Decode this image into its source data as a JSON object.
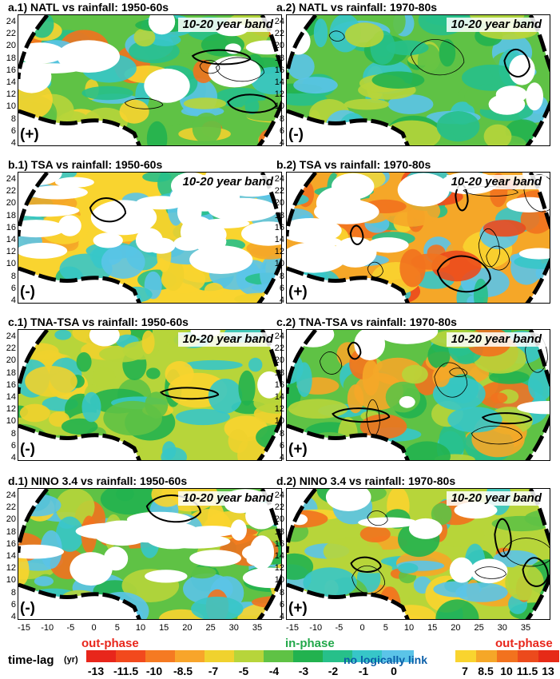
{
  "panels": [
    {
      "title": "a.1) NATL vs rainfall: 1950-60s",
      "band": "10-20 year band",
      "sign": "(+)"
    },
    {
      "title": "a.2) NATL vs rainfall: 1970-80s",
      "band": "10-20 year band",
      "sign": "(-)"
    },
    {
      "title": "b.1) TSA vs rainfall: 1950-60s",
      "band": "10-20 year band",
      "sign": "(-)"
    },
    {
      "title": "b.2) TSA vs rainfall: 1970-80s",
      "band": "10-20 year band",
      "sign": "(+)"
    },
    {
      "title": "c.1) TNA-TSA vs rainfall: 1950-60s",
      "band": "10-20 year band",
      "sign": "(-)"
    },
    {
      "title": "c.2) TNA-TSA vs rainfall: 1970-80s",
      "band": "10-20 year band",
      "sign": "(+)"
    },
    {
      "title": "d.1) NINO 3.4 vs rainfall: 1950-60s",
      "band": "10-20 year band",
      "sign": "(-)"
    },
    {
      "title": "d.2) NINO 3.4 vs rainfall: 1970-80s",
      "band": "10-20 year band",
      "sign": "(+)"
    }
  ],
  "axes": {
    "y_ticks": [
      "24",
      "22",
      "20",
      "18",
      "16",
      "14",
      "12",
      "10",
      "8",
      "6",
      "4"
    ],
    "x_ticks": [
      "-15",
      "-10",
      "-5",
      "0",
      "5",
      "10",
      "15",
      "20",
      "25",
      "30",
      "35"
    ]
  },
  "legend": {
    "out_phase_left": "out-phase",
    "in_phase": "in-phase",
    "out_phase_right": "out-phase",
    "axis_label": "time-lag",
    "unit": "(yr)",
    "no_link_label": "no logically link",
    "tick_labels": [
      "-13",
      "-11.5",
      "-10",
      "-8.5",
      "-7",
      "-5",
      "-4",
      "-3",
      "-2",
      "-1",
      "0",
      "7",
      "8.5",
      "10",
      "11.5",
      "13"
    ],
    "colors": [
      "#e8261b",
      "#f2491d",
      "#f57a22",
      "#f8a52a",
      "#f0d22e",
      "#b7d53a",
      "#5fc245",
      "#22b24f",
      "#27c08a",
      "#37c6c8",
      "#5bc4e8",
      "#ffffff",
      "#f9d42f",
      "#f5a728",
      "#f2721e",
      "#ec4a1c",
      "#e62a17"
    ]
  },
  "chart_data": [
    {
      "type": "heatmap",
      "title": "a.1) NATL vs rainfall: 1950-60s",
      "annotation": "10-20 year band",
      "sign": "(+)",
      "x_range": [
        -17,
        40
      ],
      "y_range": [
        3,
        25
      ],
      "dominant_values": [
        "-5",
        "-4",
        "-3",
        "-1"
      ],
      "grid": false
    },
    {
      "type": "heatmap",
      "title": "a.2) NATL vs rainfall: 1970-80s",
      "annotation": "10-20 year band",
      "sign": "(-)",
      "x_range": [
        -17,
        40
      ],
      "y_range": [
        3,
        25
      ],
      "dominant_values": [
        "-4",
        "-3",
        "-1"
      ],
      "grid": false
    },
    {
      "type": "heatmap",
      "title": "b.1) TSA vs rainfall: 1950-60s",
      "annotation": "10-20 year band",
      "sign": "(-)",
      "x_range": [
        -17,
        40
      ],
      "y_range": [
        3,
        25
      ],
      "dominant_values": [
        "8.5",
        "-3",
        "-1",
        "0"
      ],
      "grid": false
    },
    {
      "type": "heatmap",
      "title": "b.2) TSA vs rainfall: 1970-80s",
      "annotation": "10-20 year band",
      "sign": "(+)",
      "x_range": [
        -17,
        40
      ],
      "y_range": [
        3,
        25
      ],
      "dominant_values": [
        "8.5",
        "10",
        "11.5",
        "-3"
      ],
      "grid": false
    },
    {
      "type": "heatmap",
      "title": "c.1) TNA-TSA vs rainfall: 1950-60s",
      "annotation": "10-20 year band",
      "sign": "(-)",
      "x_range": [
        -17,
        40
      ],
      "y_range": [
        3,
        25
      ],
      "dominant_values": [
        "-5",
        "-4",
        "-7"
      ],
      "grid": false
    },
    {
      "type": "heatmap",
      "title": "c.2) TNA-TSA vs rainfall: 1970-80s",
      "annotation": "10-20 year band",
      "sign": "(+)",
      "x_range": [
        -17,
        40
      ],
      "y_range": [
        3,
        25
      ],
      "dominant_values": [
        "-4",
        "-3",
        "-1",
        "8.5"
      ],
      "grid": false
    },
    {
      "type": "heatmap",
      "title": "d.1) NINO 3.4 vs rainfall: 1950-60s",
      "annotation": "10-20 year band",
      "sign": "(-)",
      "x_range": [
        -17,
        40
      ],
      "y_range": [
        3,
        25
      ],
      "dominant_values": [
        "-4",
        "-3",
        "-1"
      ],
      "grid": false
    },
    {
      "type": "heatmap",
      "title": "d.2) NINO 3.4 vs rainfall: 1970-80s",
      "annotation": "10-20 year band",
      "sign": "(+)",
      "x_range": [
        -17,
        40
      ],
      "y_range": [
        3,
        25
      ],
      "dominant_values": [
        "-5",
        "-3",
        "8.5",
        "10"
      ],
      "grid": false
    }
  ]
}
